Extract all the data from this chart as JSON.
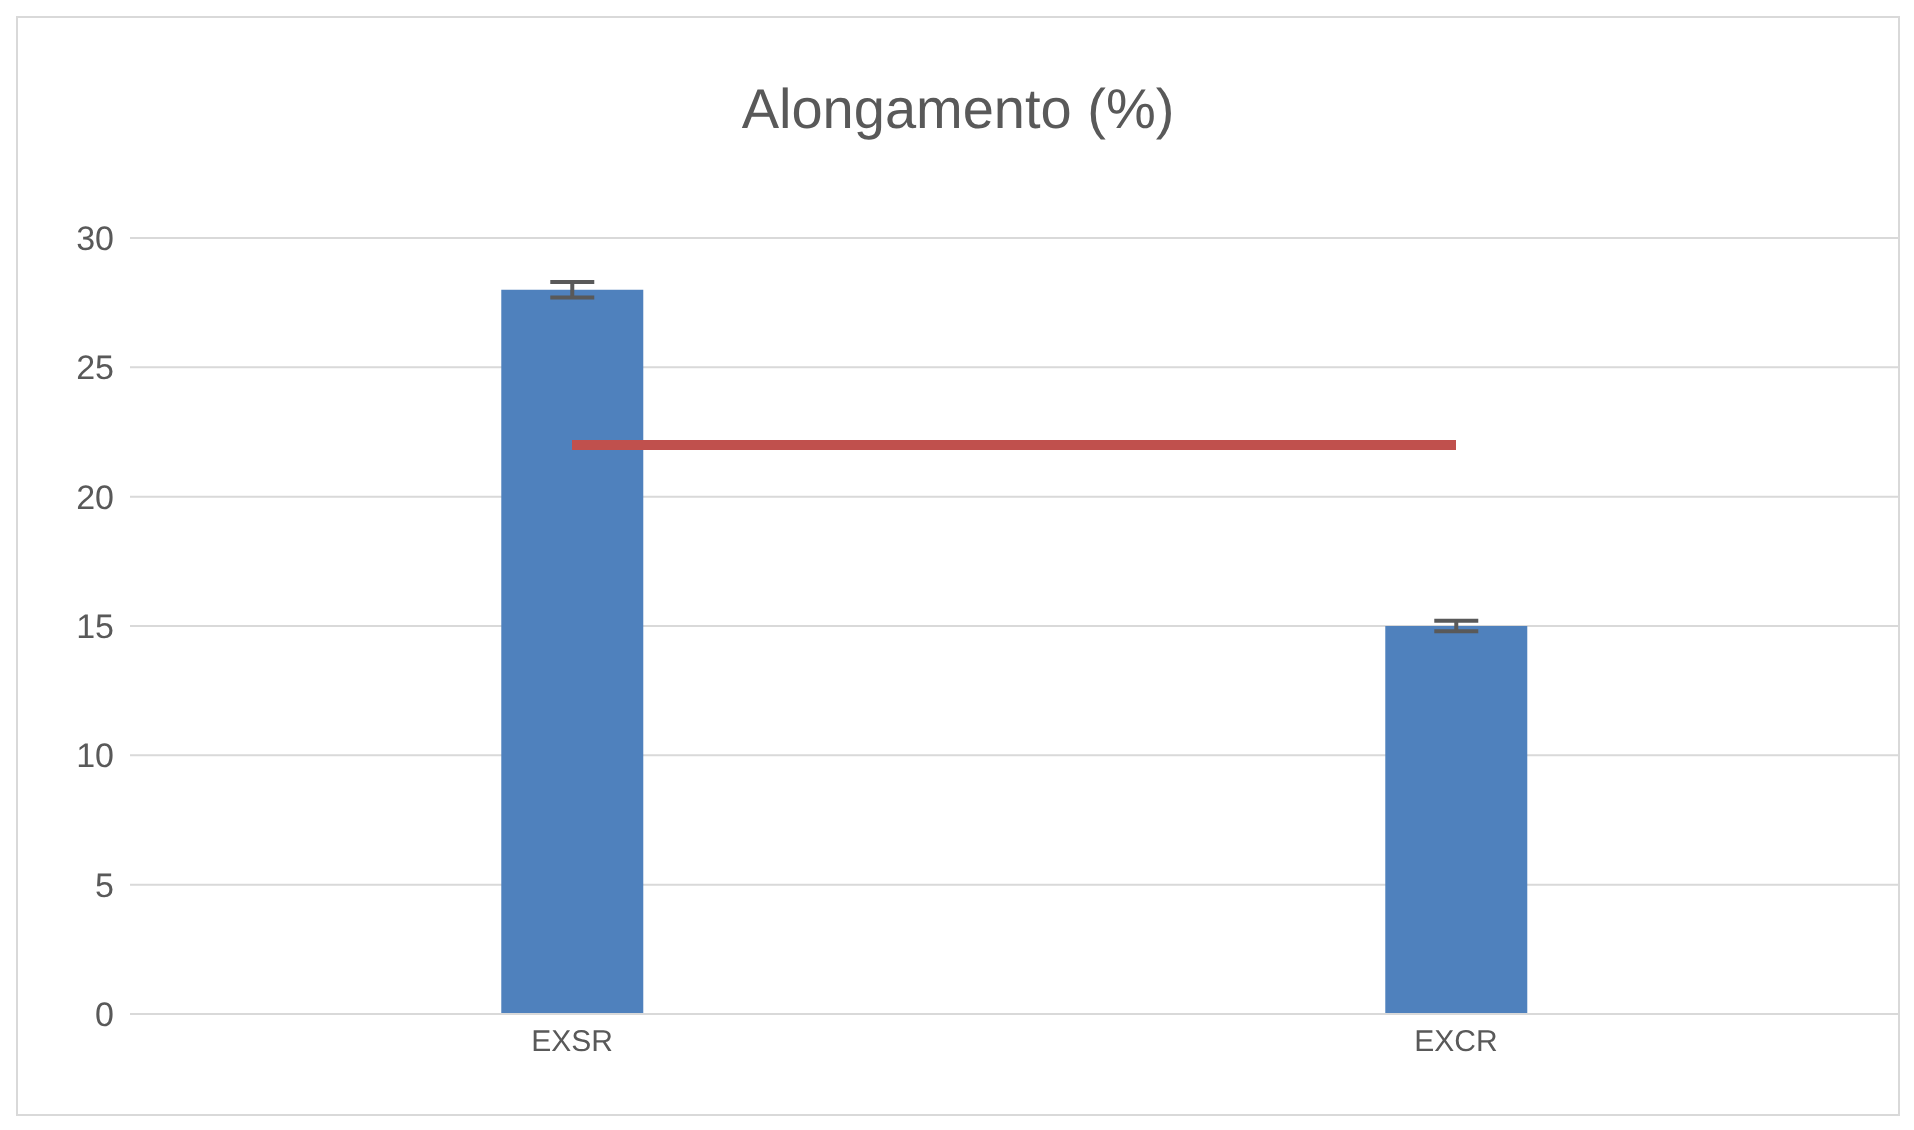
{
  "chart_data": {
    "type": "bar",
    "title": "Alongamento (%)",
    "categories": [
      "EXSR",
      "EXCR"
    ],
    "series": [
      {
        "color": "#4f81bd",
        "values": [
          28,
          15
        ],
        "errors": [
          0.3,
          0.2
        ]
      },
      {
        "type": "line",
        "color": "#c0504d",
        "values": [
          22,
          22
        ],
        "marker": "none"
      }
    ],
    "ylim": [
      0,
      30
    ],
    "yticks": [
      0,
      5,
      10,
      15,
      20,
      25,
      30
    ],
    "grid": "y",
    "legend": false
  }
}
